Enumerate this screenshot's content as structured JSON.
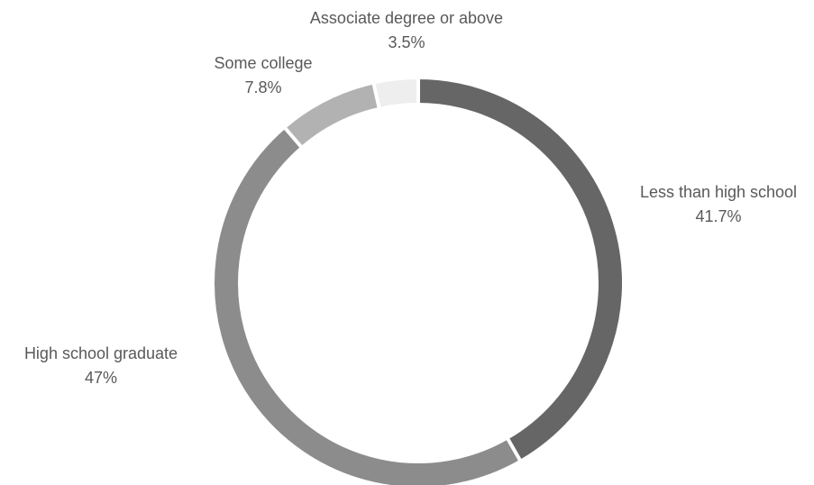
{
  "chart_data": {
    "type": "pie",
    "style": "donut",
    "title": "",
    "grid": false,
    "legend": "none",
    "slices": [
      {
        "label": "Less than high school",
        "value_label": "41.7%",
        "value": 41.7,
        "color": "#666666"
      },
      {
        "label": "High school graduate",
        "value_label": "47%",
        "value": 47.0,
        "color": "#8c8c8c"
      },
      {
        "label": "Some college",
        "value_label": "7.8%",
        "value": 7.8,
        "color": "#b2b2b2"
      },
      {
        "label": "Associate degree or above",
        "value_label": "3.5%",
        "value": 3.5,
        "color": "#eeeeee"
      }
    ]
  }
}
